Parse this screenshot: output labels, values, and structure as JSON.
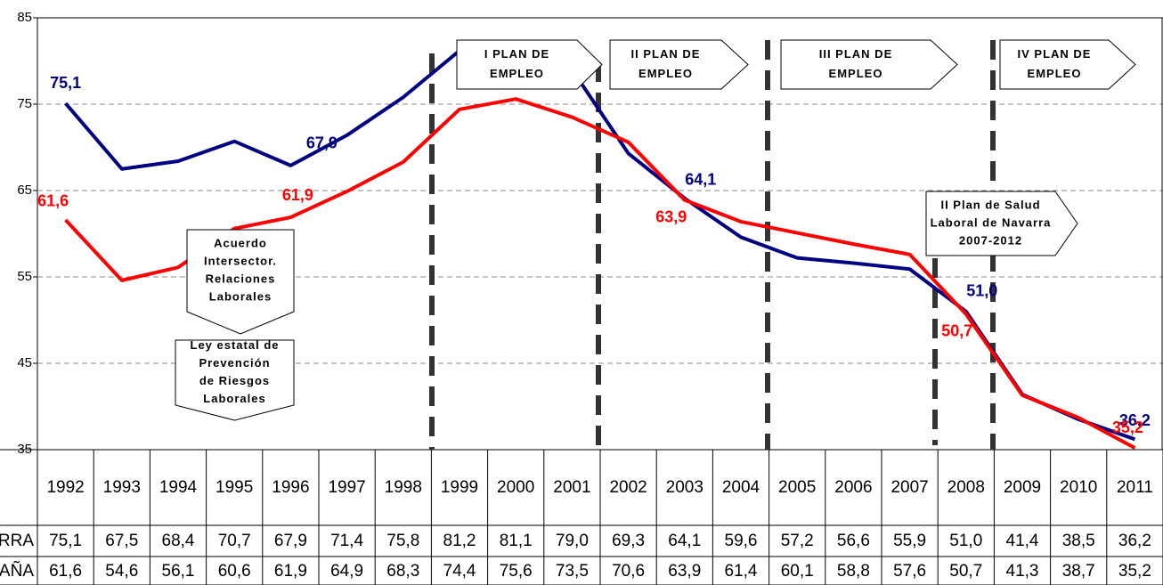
{
  "chart_data": {
    "type": "line",
    "categories": [
      "1992",
      "1993",
      "1994",
      "1995",
      "1996",
      "1997",
      "1998",
      "1999",
      "2000",
      "2001",
      "2002",
      "2003",
      "2004",
      "2005",
      "2006",
      "2007",
      "2008",
      "2009",
      "2010",
      "2011"
    ],
    "series": [
      {
        "name": "NAVARRA",
        "color": "#000080",
        "values": [
          75.1,
          67.5,
          68.4,
          70.7,
          67.9,
          71.4,
          75.8,
          81.2,
          81.1,
          79.0,
          69.3,
          64.1,
          59.6,
          57.2,
          56.6,
          55.9,
          51.0,
          41.4,
          38.5,
          36.2
        ],
        "value_labels": [
          "75,1",
          "67,5",
          "68,4",
          "70,7",
          "67,9",
          "71,4",
          "75,8",
          "81,2",
          "81,1",
          "79,0",
          "69,3",
          "64,1",
          "59,6",
          "57,2",
          "56,6",
          "55,9",
          "51,0",
          "41,4",
          "38,5",
          "36,2"
        ]
      },
      {
        "name": "ESPAÑA",
        "color": "#ff0000",
        "values": [
          61.6,
          54.6,
          56.1,
          60.6,
          61.9,
          64.9,
          68.3,
          74.4,
          75.6,
          73.5,
          70.6,
          63.9,
          61.4,
          60.1,
          58.8,
          57.6,
          50.7,
          41.3,
          38.7,
          35.2
        ],
        "value_labels": [
          "61,6",
          "54,6",
          "56,1",
          "60,6",
          "61,9",
          "64,9",
          "68,3",
          "74,4",
          "75,6",
          "73,5",
          "70,6",
          "63,9",
          "61,4",
          "60,1",
          "58,8",
          "57,6",
          "50,7",
          "41,3",
          "38,7",
          "35,2"
        ]
      }
    ],
    "data_label_indices": [
      0,
      4,
      11,
      16,
      19
    ],
    "ylim": [
      35,
      85
    ],
    "yticks": [
      35,
      45,
      55,
      65,
      75,
      85
    ],
    "grid": true,
    "annotations": [
      {
        "lines": [
          "I PLAN DE",
          "EMPLEO"
        ]
      },
      {
        "lines": [
          "II PLAN DE",
          "EMPLEO"
        ]
      },
      {
        "lines": [
          "III PLAN DE",
          "EMPLEO"
        ]
      },
      {
        "lines": [
          "IV PLAN DE",
          "EMPLEO"
        ]
      },
      {
        "lines": [
          "II Plan de Salud",
          "Laboral de Navarra",
          "2007-2012"
        ]
      },
      {
        "lines": [
          "Acuerdo",
          "Intersector.",
          "Relaciones",
          "Laborales"
        ]
      },
      {
        "lines": [
          "Ley estatal de",
          "Prevención",
          "de Riesgos",
          "Laborales"
        ]
      }
    ]
  }
}
